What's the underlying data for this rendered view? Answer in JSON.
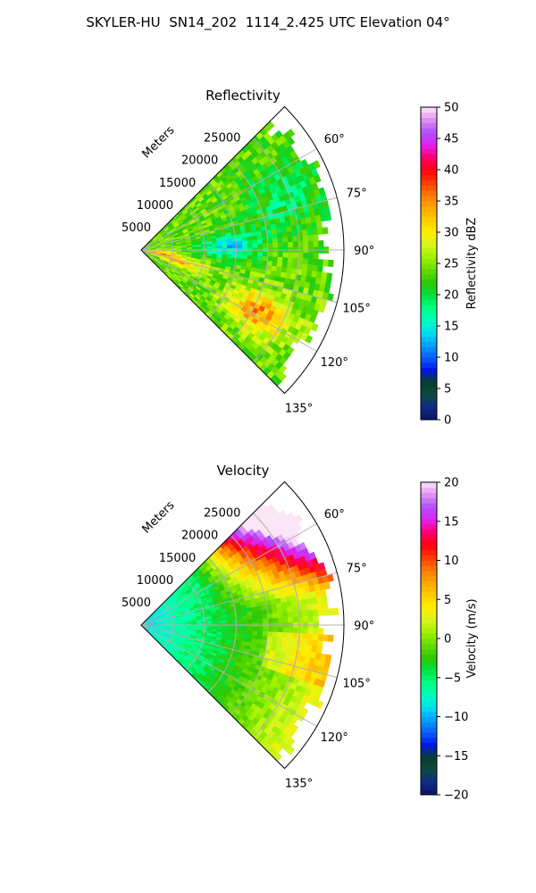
{
  "figure": {
    "title": "SKYLER-HU  SN14_202  1114_2.425 UTC Elevation 04°"
  },
  "chart_data": [
    {
      "type": "heatmap",
      "projection": "polar-sector",
      "title": "Reflectivity",
      "radial_label": "Meters",
      "radial_ticks": [
        5000,
        10000,
        15000,
        20000,
        25000
      ],
      "radial_tick_labels": [
        "5000",
        "10000",
        "15000",
        "20000",
        "25000"
      ],
      "r_max": 32000,
      "theta_range_deg": [
        45,
        135
      ],
      "theta_ticks": [
        60,
        75,
        90,
        105,
        120,
        135
      ],
      "theta_tick_labels": [
        "60°",
        "75°",
        "90°",
        "105°",
        "120°",
        "135°"
      ],
      "grid": true,
      "field_description": "Reflectivity mostly 20–30 dBZ across sector; embedded 30–38 dBZ cores near 105°–125° at 15000–25000 m and near origin; 10–18 dBZ pocket near 80°–95° at 10000–17000 m",
      "colorbar": {
        "label": "Reflectivity dBZ",
        "min": 0,
        "max": 50,
        "ticks": [
          0,
          5,
          10,
          15,
          20,
          25,
          30,
          35,
          40,
          45,
          50
        ],
        "tick_labels": [
          "0",
          "5",
          "10",
          "15",
          "20",
          "25",
          "30",
          "35",
          "40",
          "45",
          "50"
        ],
        "placement": "right"
      }
    },
    {
      "type": "heatmap",
      "projection": "polar-sector",
      "title": "Velocity",
      "radial_label": "Meters",
      "radial_ticks": [
        5000,
        10000,
        15000,
        20000,
        25000
      ],
      "radial_tick_labels": [
        "5000",
        "10000",
        "15000",
        "20000",
        "25000"
      ],
      "r_max": 32000,
      "theta_range_deg": [
        45,
        135
      ],
      "theta_ticks": [
        60,
        75,
        90,
        105,
        120,
        135
      ],
      "theta_tick_labels": [
        "60°",
        "75°",
        "90°",
        "105°",
        "120°",
        "135°"
      ],
      "grid": true,
      "field_description": "Velocity about -10 to -5 m/s near radar; increasing with range; +5 to +15 m/s at 60°–80° far range; 0 to +5 m/s at 90°–135° far range",
      "colorbar": {
        "label": "Velocity (m/s)",
        "min": -20,
        "max": 20,
        "ticks": [
          -20,
          -15,
          -10,
          -5,
          0,
          5,
          10,
          15,
          20
        ],
        "tick_labels": [
          "−20",
          "−15",
          "−10",
          "−5",
          "0",
          "5",
          "10",
          "15",
          "20"
        ],
        "placement": "right"
      }
    }
  ]
}
